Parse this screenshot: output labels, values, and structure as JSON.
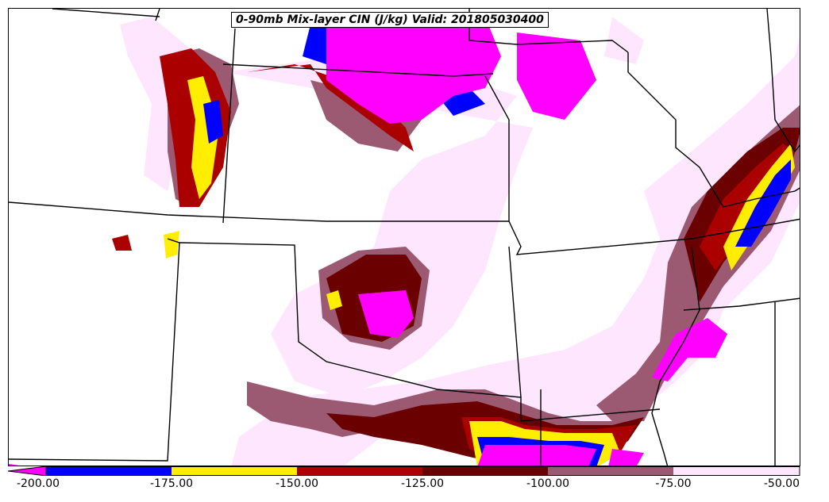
{
  "title": "0-90mb Mix-layer CIN (J/kg) Valid: 201805030400",
  "colorbar": {
    "ticks": [
      "-200.00",
      "-175.00",
      "-150.00",
      "-125.00",
      "-100.00",
      "-75.00",
      "-50.00"
    ],
    "bins": [
      {
        "range": "< -200",
        "color": "#ff00ff"
      },
      {
        "range": "-200 to -175",
        "color": "#0000ff"
      },
      {
        "range": "-175 to -150",
        "color": "#ffee00"
      },
      {
        "range": "-150 to -125",
        "color": "#aa0000"
      },
      {
        "range": "-125 to -100",
        "color": "#6b0000"
      },
      {
        "range": "-100 to -75",
        "color": "#9c5a72"
      },
      {
        "range": "-75 to -50",
        "color": "#ffe6ff"
      }
    ]
  }
}
